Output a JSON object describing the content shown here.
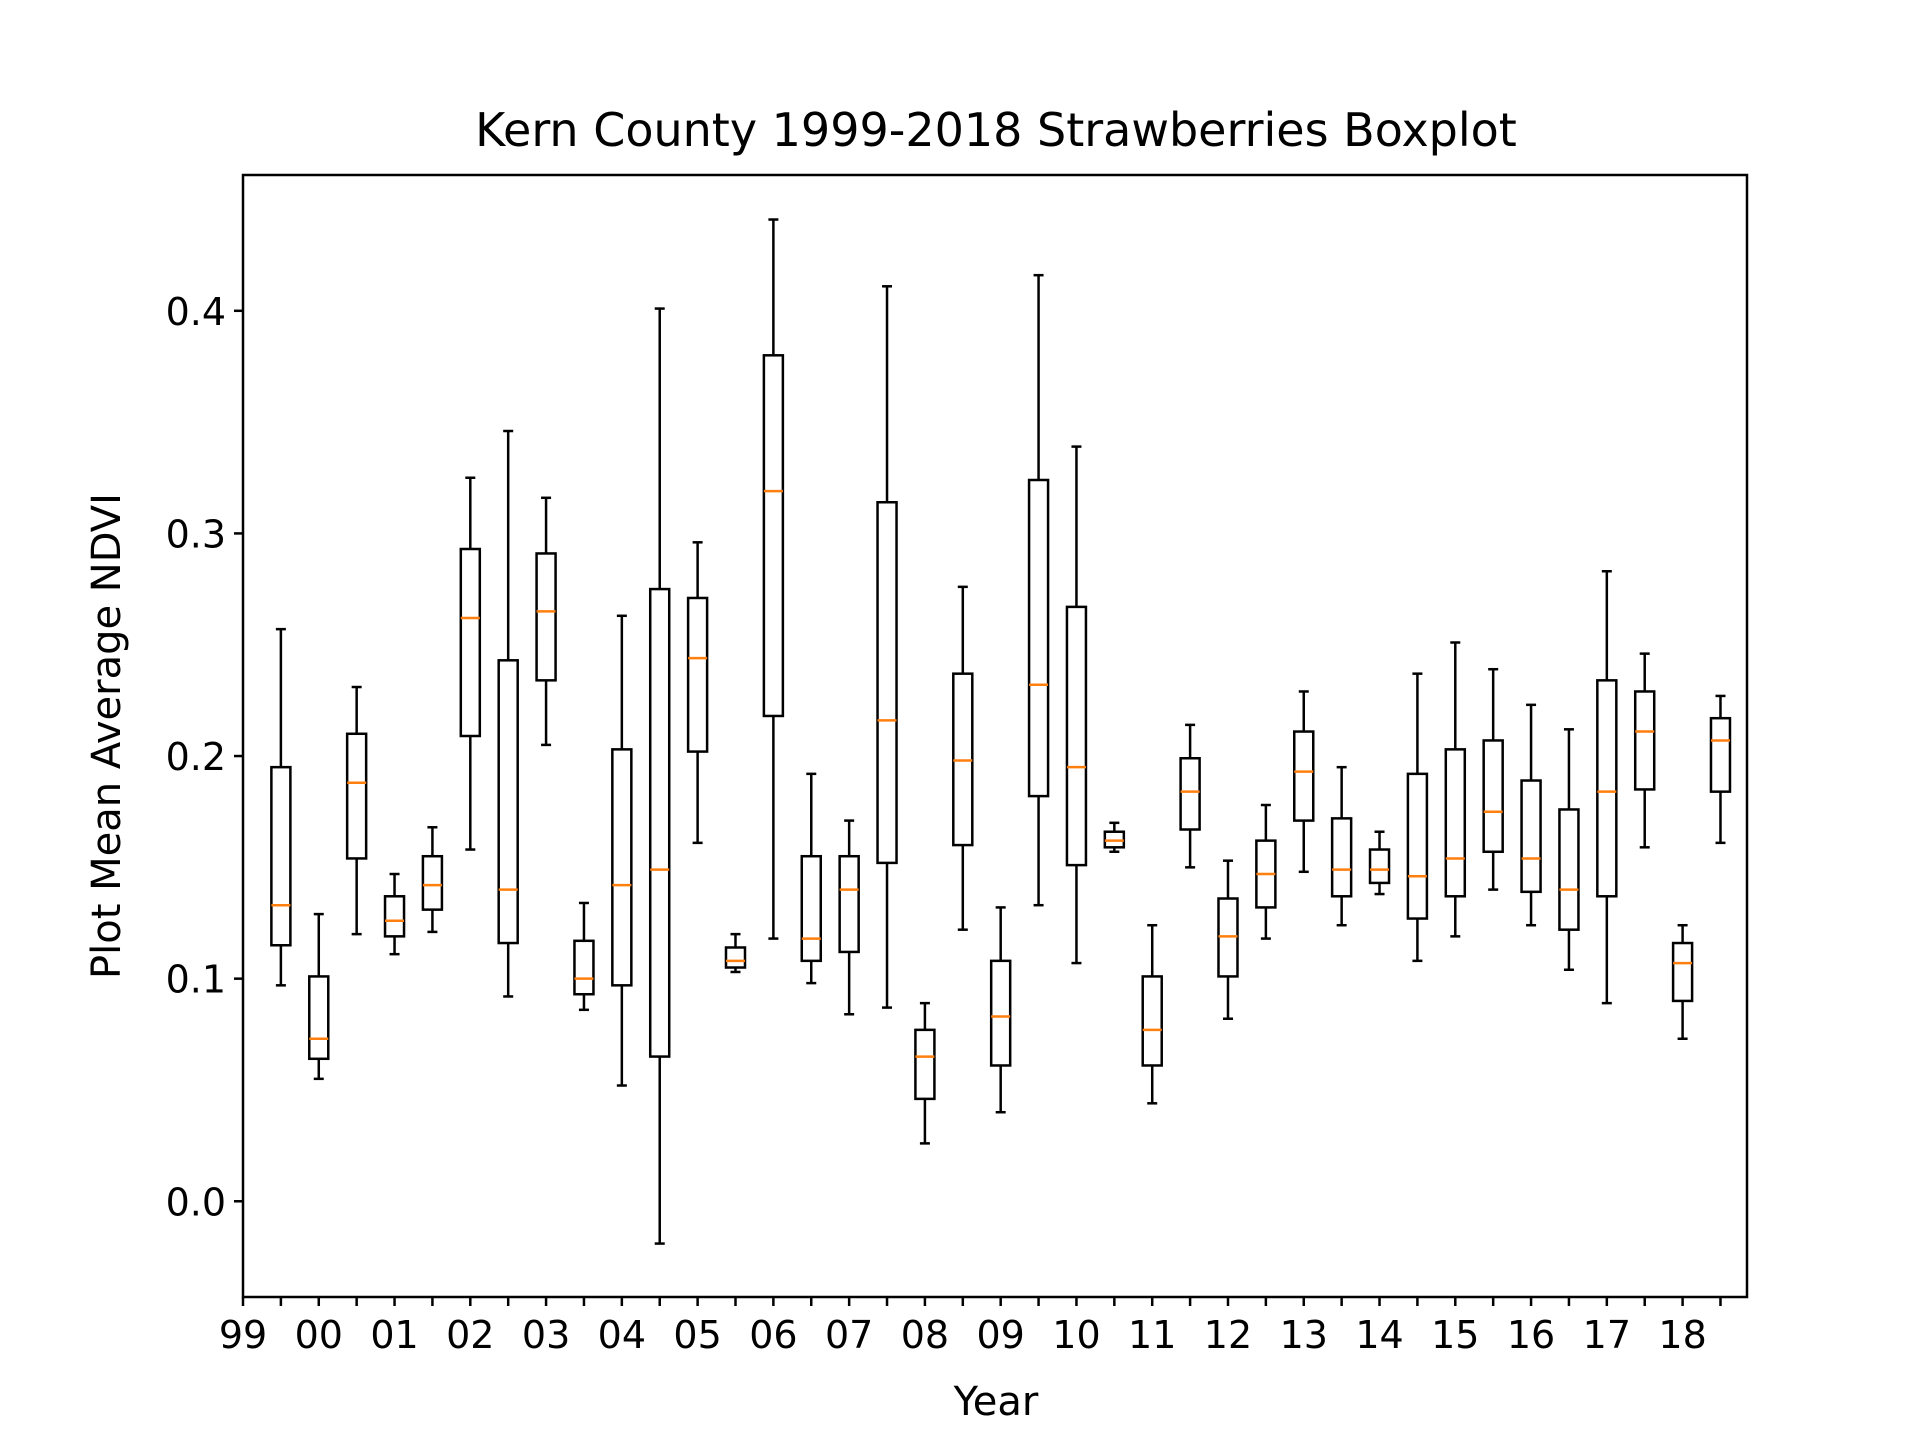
{
  "chart_data": {
    "type": "box",
    "title": "Kern County 1999-2018 Strawberries Boxplot",
    "xlabel": "Year",
    "ylabel": "Plot Mean Average NDVI",
    "ylim": [
      -0.043,
      0.461
    ],
    "y_ticks": [
      0.0,
      0.1,
      0.2,
      0.3,
      0.4
    ],
    "y_tick_labels": [
      "0.0",
      "0.1",
      "0.2",
      "0.3",
      "0.4"
    ],
    "x_ticks": [
      0,
      1,
      2,
      3,
      4,
      5,
      6,
      7,
      8,
      9,
      10,
      11,
      12,
      13,
      14,
      15,
      16,
      17,
      18,
      19,
      20,
      21,
      22,
      23,
      24,
      25,
      26,
      27,
      28,
      29,
      30,
      31,
      32,
      33,
      34,
      35,
      36,
      37,
      38,
      39
    ],
    "x_tick_labels": [
      "99",
      "00",
      "01",
      "02",
      "03",
      "04",
      "05",
      "06",
      "07",
      "08",
      "09",
      "10",
      "11",
      "12",
      "13",
      "14",
      "15",
      "16",
      "17",
      "18"
    ],
    "x_tick_label_positions": [
      0,
      2,
      4,
      6,
      8,
      10,
      12,
      14,
      16,
      18,
      20,
      22,
      24,
      26,
      28,
      30,
      32,
      34,
      36,
      38
    ],
    "xlim": [
      0,
      39.7
    ],
    "grid": false,
    "legend": "none",
    "colors": {
      "box": "#000000",
      "median": "#ff7f0e",
      "background": "#ffffff"
    },
    "boxes": [
      {
        "x": 1,
        "whislo": 0.097,
        "q1": 0.115,
        "med": 0.133,
        "q3": 0.195,
        "whishi": 0.257
      },
      {
        "x": 2,
        "whislo": 0.055,
        "q1": 0.064,
        "med": 0.073,
        "q3": 0.101,
        "whishi": 0.129
      },
      {
        "x": 3,
        "whislo": 0.12,
        "q1": 0.154,
        "med": 0.188,
        "q3": 0.21,
        "whishi": 0.231
      },
      {
        "x": 4,
        "whislo": 0.111,
        "q1": 0.119,
        "med": 0.126,
        "q3": 0.137,
        "whishi": 0.147
      },
      {
        "x": 5,
        "whislo": 0.121,
        "q1": 0.131,
        "med": 0.142,
        "q3": 0.155,
        "whishi": 0.168
      },
      {
        "x": 6,
        "whislo": 0.158,
        "q1": 0.209,
        "med": 0.262,
        "q3": 0.293,
        "whishi": 0.325
      },
      {
        "x": 7,
        "whislo": 0.092,
        "q1": 0.116,
        "med": 0.14,
        "q3": 0.243,
        "whishi": 0.346
      },
      {
        "x": 8,
        "whislo": 0.205,
        "q1": 0.234,
        "med": 0.265,
        "q3": 0.291,
        "whishi": 0.316
      },
      {
        "x": 9,
        "whislo": 0.086,
        "q1": 0.093,
        "med": 0.1,
        "q3": 0.117,
        "whishi": 0.134
      },
      {
        "x": 10,
        "whislo": 0.052,
        "q1": 0.097,
        "med": 0.142,
        "q3": 0.203,
        "whishi": 0.263
      },
      {
        "x": 11,
        "whislo": -0.019,
        "q1": 0.065,
        "med": 0.149,
        "q3": 0.275,
        "whishi": 0.401
      },
      {
        "x": 12,
        "whislo": 0.161,
        "q1": 0.202,
        "med": 0.244,
        "q3": 0.271,
        "whishi": 0.296
      },
      {
        "x": 13,
        "whislo": 0.103,
        "q1": 0.105,
        "med": 0.108,
        "q3": 0.114,
        "whishi": 0.12
      },
      {
        "x": 14,
        "whislo": 0.118,
        "q1": 0.218,
        "med": 0.319,
        "q3": 0.38,
        "whishi": 0.441
      },
      {
        "x": 15,
        "whislo": 0.098,
        "q1": 0.108,
        "med": 0.118,
        "q3": 0.155,
        "whishi": 0.192
      },
      {
        "x": 16,
        "whislo": 0.084,
        "q1": 0.112,
        "med": 0.14,
        "q3": 0.155,
        "whishi": 0.171
      },
      {
        "x": 17,
        "whislo": 0.087,
        "q1": 0.152,
        "med": 0.216,
        "q3": 0.314,
        "whishi": 0.411
      },
      {
        "x": 18,
        "whislo": 0.026,
        "q1": 0.046,
        "med": 0.065,
        "q3": 0.077,
        "whishi": 0.089
      },
      {
        "x": 19,
        "whislo": 0.122,
        "q1": 0.16,
        "med": 0.198,
        "q3": 0.237,
        "whishi": 0.276
      },
      {
        "x": 20,
        "whislo": 0.04,
        "q1": 0.061,
        "med": 0.083,
        "q3": 0.108,
        "whishi": 0.132
      },
      {
        "x": 21,
        "whislo": 0.133,
        "q1": 0.182,
        "med": 0.232,
        "q3": 0.324,
        "whishi": 0.416
      },
      {
        "x": 22,
        "whislo": 0.107,
        "q1": 0.151,
        "med": 0.195,
        "q3": 0.267,
        "whishi": 0.339
      },
      {
        "x": 23,
        "whislo": 0.157,
        "q1": 0.159,
        "med": 0.162,
        "q3": 0.166,
        "whishi": 0.17
      },
      {
        "x": 24,
        "whislo": 0.044,
        "q1": 0.061,
        "med": 0.077,
        "q3": 0.101,
        "whishi": 0.124
      },
      {
        "x": 25,
        "whislo": 0.15,
        "q1": 0.167,
        "med": 0.184,
        "q3": 0.199,
        "whishi": 0.214
      },
      {
        "x": 26,
        "whislo": 0.082,
        "q1": 0.101,
        "med": 0.119,
        "q3": 0.136,
        "whishi": 0.153
      },
      {
        "x": 27,
        "whislo": 0.118,
        "q1": 0.132,
        "med": 0.147,
        "q3": 0.162,
        "whishi": 0.178
      },
      {
        "x": 28,
        "whislo": 0.148,
        "q1": 0.171,
        "med": 0.193,
        "q3": 0.211,
        "whishi": 0.229
      },
      {
        "x": 29,
        "whislo": 0.124,
        "q1": 0.137,
        "med": 0.149,
        "q3": 0.172,
        "whishi": 0.195
      },
      {
        "x": 30,
        "whislo": 0.138,
        "q1": 0.143,
        "med": 0.149,
        "q3": 0.158,
        "whishi": 0.166
      },
      {
        "x": 31,
        "whislo": 0.108,
        "q1": 0.127,
        "med": 0.146,
        "q3": 0.192,
        "whishi": 0.237
      },
      {
        "x": 32,
        "whislo": 0.119,
        "q1": 0.137,
        "med": 0.154,
        "q3": 0.203,
        "whishi": 0.251
      },
      {
        "x": 33,
        "whislo": 0.14,
        "q1": 0.157,
        "med": 0.175,
        "q3": 0.207,
        "whishi": 0.239
      },
      {
        "x": 34,
        "whislo": 0.124,
        "q1": 0.139,
        "med": 0.154,
        "q3": 0.189,
        "whishi": 0.223
      },
      {
        "x": 35,
        "whislo": 0.104,
        "q1": 0.122,
        "med": 0.14,
        "q3": 0.176,
        "whishi": 0.212
      },
      {
        "x": 36,
        "whislo": 0.089,
        "q1": 0.137,
        "med": 0.184,
        "q3": 0.234,
        "whishi": 0.283
      },
      {
        "x": 37,
        "whislo": 0.159,
        "q1": 0.185,
        "med": 0.211,
        "q3": 0.229,
        "whishi": 0.246
      },
      {
        "x": 38,
        "whislo": 0.073,
        "q1": 0.09,
        "med": 0.107,
        "q3": 0.116,
        "whishi": 0.124
      },
      {
        "x": 39,
        "whislo": 0.161,
        "q1": 0.184,
        "med": 0.207,
        "q3": 0.217,
        "whishi": 0.227
      }
    ]
  }
}
